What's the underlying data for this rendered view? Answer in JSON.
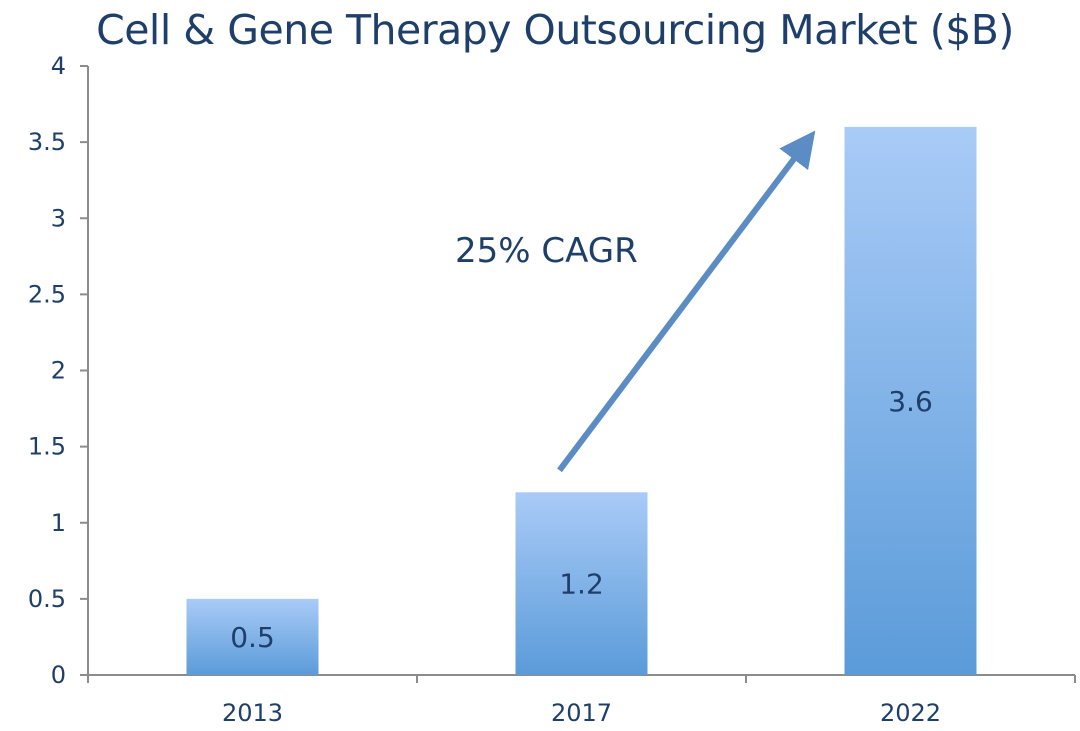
{
  "chart_data": {
    "type": "bar",
    "title": "Cell & Gene Therapy Outsourcing Market ($B)",
    "xlabel": "",
    "ylabel": "",
    "categories": [
      "2013",
      "2017",
      "2022"
    ],
    "values": [
      0.5,
      1.2,
      3.6
    ],
    "data_labels": [
      "0.5",
      "1.2",
      "3.6"
    ],
    "ylim": [
      0,
      4
    ],
    "yticks": [
      "0",
      "0.5",
      "1",
      "1.5",
      "2",
      "2.5",
      "3",
      "3.5",
      "4"
    ],
    "grid": false,
    "legend": "none",
    "annotation": {
      "text": "25% CAGR",
      "type": "arrow",
      "from_category": "2017",
      "to_category": "2022"
    },
    "colors": {
      "bar_top": "#a9cbf7",
      "bar_bottom": "#5b9bd9",
      "text": "#1f3f6b",
      "axis": "#8c8c8c",
      "arrow": "#5b8cc4"
    }
  }
}
